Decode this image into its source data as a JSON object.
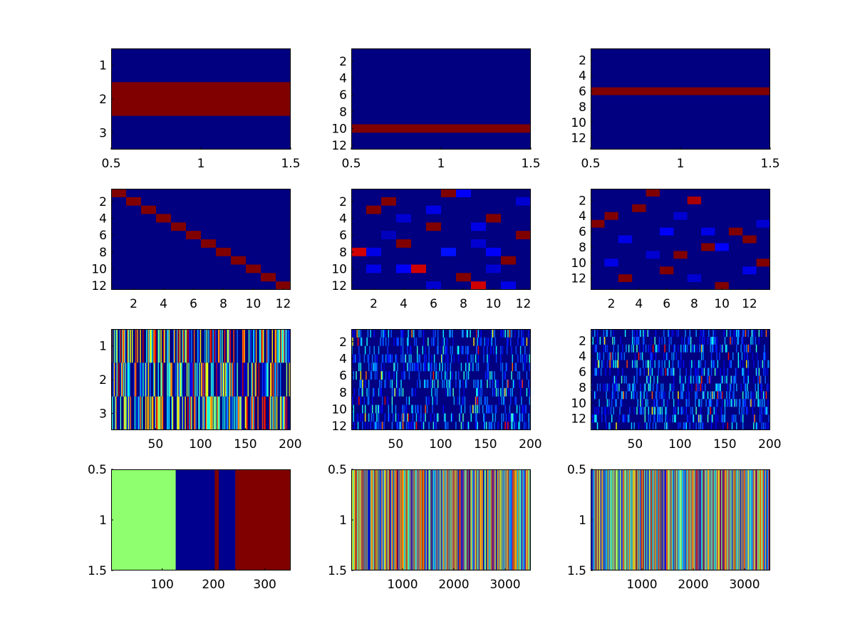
{
  "figure": {
    "background": "#ffffff",
    "colormap": "jet"
  },
  "chart_data": [
    {
      "type": "heatmap",
      "row": 0,
      "col": 0,
      "xlim": [
        0.5,
        1.5
      ],
      "ylim": [
        0.5,
        3.5
      ],
      "xticks": [
        0.5,
        1,
        1.5
      ],
      "xtick_labels": [
        "0.5",
        "1",
        "1.5"
      ],
      "yticks": [
        1,
        2,
        3
      ],
      "ytick_labels": [
        "1",
        "2",
        "3"
      ],
      "grid": false,
      "bands": [
        {
          "row": 2,
          "value": 1.0,
          "color": "#800000"
        }
      ],
      "background_value": 0.0
    },
    {
      "type": "heatmap",
      "row": 0,
      "col": 1,
      "xlim": [
        0.5,
        1.5
      ],
      "ylim": [
        0.5,
        12.5
      ],
      "xticks": [
        0.5,
        1,
        1.5
      ],
      "xtick_labels": [
        "0.5",
        "1",
        "1.5"
      ],
      "yticks": [
        2,
        4,
        6,
        8,
        10,
        12
      ],
      "ytick_labels": [
        "2",
        "4",
        "6",
        "8",
        "10",
        "12"
      ],
      "grid": false,
      "bands": [
        {
          "row": 10,
          "value": 1.0,
          "color": "#800000"
        }
      ],
      "background_value": 0.0
    },
    {
      "type": "heatmap",
      "row": 0,
      "col": 2,
      "xlim": [
        0.5,
        1.5
      ],
      "ylim": [
        0.5,
        13.5
      ],
      "xticks": [
        0.5,
        1,
        1.5
      ],
      "xtick_labels": [
        "0.5",
        "1",
        "1.5"
      ],
      "yticks": [
        2,
        4,
        6,
        8,
        10,
        12
      ],
      "ytick_labels": [
        "2",
        "4",
        "6",
        "8",
        "10",
        "12"
      ],
      "grid": false,
      "bands": [
        {
          "row": 6,
          "value": 1.0,
          "color": "#800000"
        }
      ],
      "background_value": 0.0
    },
    {
      "type": "heatmap",
      "row": 1,
      "col": 0,
      "xlim": [
        0.5,
        12.5
      ],
      "ylim": [
        0.5,
        12.5
      ],
      "xticks": [
        2,
        4,
        6,
        8,
        10,
        12
      ],
      "xtick_labels": [
        "2",
        "4",
        "6",
        "8",
        "10",
        "12"
      ],
      "yticks": [
        2,
        4,
        6,
        8,
        10,
        12
      ],
      "ytick_labels": [
        "2",
        "4",
        "6",
        "8",
        "10",
        "12"
      ],
      "grid": false,
      "cells": [
        {
          "x": 1,
          "y": 1,
          "v": 1.0
        },
        {
          "x": 2,
          "y": 2,
          "v": 1.0
        },
        {
          "x": 3,
          "y": 3,
          "v": 1.0
        },
        {
          "x": 4,
          "y": 4,
          "v": 1.0
        },
        {
          "x": 5,
          "y": 5,
          "v": 1.0
        },
        {
          "x": 6,
          "y": 6,
          "v": 1.0
        },
        {
          "x": 7,
          "y": 7,
          "v": 1.0
        },
        {
          "x": 8,
          "y": 8,
          "v": 1.0
        },
        {
          "x": 9,
          "y": 9,
          "v": 1.0
        },
        {
          "x": 10,
          "y": 10,
          "v": 1.0
        },
        {
          "x": 11,
          "y": 11,
          "v": 1.0
        },
        {
          "x": 12,
          "y": 12,
          "v": 1.0
        }
      ],
      "background_value": 0.0
    },
    {
      "type": "heatmap",
      "row": 1,
      "col": 1,
      "xlim": [
        0.5,
        12.5
      ],
      "ylim": [
        0.5,
        12.5
      ],
      "xticks": [
        2,
        4,
        6,
        8,
        10,
        12
      ],
      "xtick_labels": [
        "2",
        "4",
        "6",
        "8",
        "10",
        "12"
      ],
      "yticks": [
        2,
        4,
        6,
        8,
        10,
        12
      ],
      "ytick_labels": [
        "2",
        "4",
        "6",
        "8",
        "10",
        "12"
      ],
      "grid": false,
      "cells": [
        {
          "x": 7,
          "y": 1,
          "v": 1.0
        },
        {
          "x": 3,
          "y": 2,
          "v": 1.0
        },
        {
          "x": 2,
          "y": 3,
          "v": 1.0
        },
        {
          "x": 10,
          "y": 4,
          "v": 1.0
        },
        {
          "x": 6,
          "y": 5,
          "v": 1.0
        },
        {
          "x": 12,
          "y": 6,
          "v": 1.0
        },
        {
          "x": 4,
          "y": 7,
          "v": 1.0
        },
        {
          "x": 1,
          "y": 8,
          "v": 0.92
        },
        {
          "x": 11,
          "y": 9,
          "v": 1.0
        },
        {
          "x": 5,
          "y": 10,
          "v": 0.92
        },
        {
          "x": 8,
          "y": 11,
          "v": 1.0
        },
        {
          "x": 9,
          "y": 12,
          "v": 0.92
        },
        {
          "x": 8,
          "y": 1,
          "v": 0.12
        },
        {
          "x": 6,
          "y": 3,
          "v": 0.1
        },
        {
          "x": 4,
          "y": 4,
          "v": 0.08
        },
        {
          "x": 9,
          "y": 5,
          "v": 0.1
        },
        {
          "x": 2,
          "y": 8,
          "v": 0.1
        },
        {
          "x": 7,
          "y": 8,
          "v": 0.14
        },
        {
          "x": 10,
          "y": 8,
          "v": 0.12
        },
        {
          "x": 9,
          "y": 7,
          "v": 0.08
        },
        {
          "x": 2,
          "y": 10,
          "v": 0.1
        },
        {
          "x": 4,
          "y": 10,
          "v": 0.12
        },
        {
          "x": 10,
          "y": 10,
          "v": 0.08
        },
        {
          "x": 6,
          "y": 12,
          "v": 0.08
        },
        {
          "x": 11,
          "y": 12,
          "v": 0.1
        },
        {
          "x": 12,
          "y": 2,
          "v": 0.08
        },
        {
          "x": 3,
          "y": 6,
          "v": 0.06
        }
      ],
      "background_value": 0.0
    },
    {
      "type": "heatmap",
      "row": 1,
      "col": 2,
      "xlim": [
        0.5,
        13.5
      ],
      "ylim": [
        0.5,
        13.5
      ],
      "xticks": [
        2,
        4,
        6,
        8,
        10,
        12
      ],
      "xtick_labels": [
        "2",
        "4",
        "6",
        "8",
        "10",
        "12"
      ],
      "yticks": [
        2,
        4,
        6,
        8,
        10,
        12
      ],
      "ytick_labels": [
        "2",
        "4",
        "6",
        "8",
        "10",
        "12"
      ],
      "grid": false,
      "cells": [
        {
          "x": 5,
          "y": 1,
          "v": 1.0
        },
        {
          "x": 8,
          "y": 2,
          "v": 0.96
        },
        {
          "x": 4,
          "y": 3,
          "v": 1.0
        },
        {
          "x": 2,
          "y": 4,
          "v": 1.0
        },
        {
          "x": 1,
          "y": 5,
          "v": 1.0
        },
        {
          "x": 11,
          "y": 6,
          "v": 1.0
        },
        {
          "x": 12,
          "y": 7,
          "v": 1.0
        },
        {
          "x": 9,
          "y": 8,
          "v": 1.0
        },
        {
          "x": 7,
          "y": 9,
          "v": 1.0
        },
        {
          "x": 13,
          "y": 10,
          "v": 1.0
        },
        {
          "x": 6,
          "y": 11,
          "v": 1.0
        },
        {
          "x": 3,
          "y": 12,
          "v": 1.0
        },
        {
          "x": 10,
          "y": 13,
          "v": 1.0
        },
        {
          "x": 6,
          "y": 6,
          "v": 0.12
        },
        {
          "x": 3,
          "y": 7,
          "v": 0.1
        },
        {
          "x": 9,
          "y": 6,
          "v": 0.1
        },
        {
          "x": 10,
          "y": 8,
          "v": 0.12
        },
        {
          "x": 5,
          "y": 9,
          "v": 0.08
        },
        {
          "x": 2,
          "y": 10,
          "v": 0.1
        },
        {
          "x": 12,
          "y": 11,
          "v": 0.1
        },
        {
          "x": 8,
          "y": 12,
          "v": 0.08
        },
        {
          "x": 7,
          "y": 4,
          "v": 0.08
        },
        {
          "x": 13,
          "y": 5,
          "v": 0.08
        }
      ],
      "background_value": 0.0
    },
    {
      "type": "heatmap",
      "row": 2,
      "col": 0,
      "xlim": [
        0.5,
        200.5
      ],
      "ylim": [
        0.5,
        3.5
      ],
      "xticks": [
        50,
        100,
        150,
        200
      ],
      "xtick_labels": [
        "50",
        "100",
        "150",
        "200"
      ],
      "yticks": [
        1,
        2,
        3
      ],
      "ytick_labels": [
        "1",
        "2",
        "3"
      ],
      "grid": false,
      "pattern": "dense random stripes (jet colormap)",
      "nrows": 3,
      "ncols": 200,
      "background_value": 0.0
    },
    {
      "type": "heatmap",
      "row": 2,
      "col": 1,
      "xlim": [
        0.5,
        200.5
      ],
      "ylim": [
        0.5,
        12.5
      ],
      "xticks": [
        50,
        100,
        150,
        200
      ],
      "xtick_labels": [
        "50",
        "100",
        "150",
        "200"
      ],
      "yticks": [
        2,
        4,
        6,
        8,
        10,
        12
      ],
      "ytick_labels": [
        "2",
        "4",
        "6",
        "8",
        "10",
        "12"
      ],
      "grid": false,
      "pattern": "sparse random ticks (jet colormap)",
      "nrows": 12,
      "ncols": 200,
      "background_value": 0.0
    },
    {
      "type": "heatmap",
      "row": 2,
      "col": 2,
      "xlim": [
        0.5,
        200.5
      ],
      "ylim": [
        0.5,
        13.5
      ],
      "xticks": [
        50,
        100,
        150,
        200
      ],
      "xtick_labels": [
        "50",
        "100",
        "150",
        "200"
      ],
      "yticks": [
        2,
        4,
        6,
        8,
        10,
        12
      ],
      "ytick_labels": [
        "2",
        "4",
        "6",
        "8",
        "10",
        "12"
      ],
      "grid": false,
      "pattern": "sparse random ticks (jet colormap)",
      "nrows": 13,
      "ncols": 200,
      "background_value": 0.0
    },
    {
      "type": "heatmap",
      "row": 3,
      "col": 0,
      "xlim": [
        0.5,
        350.5
      ],
      "ylim": [
        0.5,
        1.5
      ],
      "xticks": [
        100,
        200,
        300
      ],
      "xtick_labels": [
        "100",
        "200",
        "300"
      ],
      "yticks": [
        0.5,
        1,
        1.5
      ],
      "ytick_labels": [
        "0.5",
        "1",
        "1.5"
      ],
      "grid": false,
      "segments": [
        {
          "x0": 0.5,
          "x1": 126.5,
          "value": 0.6,
          "color": "#8fff6f"
        },
        {
          "x0": 126.5,
          "x1": 202.5,
          "value": 0.0,
          "color": "#00008f"
        },
        {
          "x0": 202.5,
          "x1": 210.5,
          "value": 1.0,
          "color": "#800000"
        },
        {
          "x0": 210.5,
          "x1": 242.5,
          "value": 0.0,
          "color": "#00008f"
        },
        {
          "x0": 242.5,
          "x1": 350.5,
          "value": 1.0,
          "color": "#800000"
        }
      ]
    },
    {
      "type": "heatmap",
      "row": 3,
      "col": 1,
      "xlim": [
        0.5,
        3500.5
      ],
      "ylim": [
        0.5,
        1.5
      ],
      "xticks": [
        1000,
        2000,
        3000
      ],
      "xtick_labels": [
        "1000",
        "2000",
        "3000"
      ],
      "yticks": [
        0.5,
        1,
        1.5
      ],
      "ytick_labels": [
        "0.5",
        "1",
        "1.5"
      ],
      "grid": false,
      "pattern": "dense random stripes (jet colormap)",
      "nrows": 1,
      "ncols": 3500
    },
    {
      "type": "heatmap",
      "row": 3,
      "col": 2,
      "xlim": [
        0.5,
        3500.5
      ],
      "ylim": [
        0.5,
        1.5
      ],
      "xticks": [
        1000,
        2000,
        3000
      ],
      "xtick_labels": [
        "1000",
        "2000",
        "3000"
      ],
      "yticks": [
        0.5,
        1,
        1.5
      ],
      "ytick_labels": [
        "0.5",
        "1",
        "1.5"
      ],
      "grid": false,
      "pattern": "dense random stripes (jet colormap)",
      "nrows": 1,
      "ncols": 3500
    }
  ]
}
